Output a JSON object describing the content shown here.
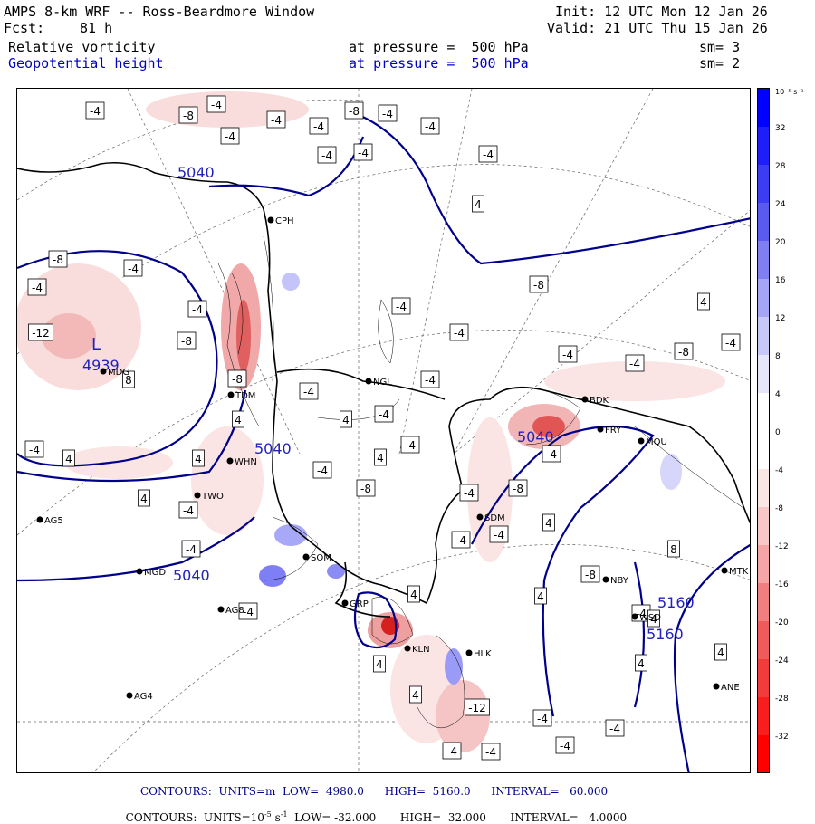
{
  "header": {
    "model": "AMPS 8-km WRF -- Ross-Beardmore Window",
    "fcst_label": "Fcst:",
    "fcst_value": "81 h",
    "init": "Init: 12 UTC Mon 12 Jan 26",
    "valid": "Valid: 21 UTC Thu 15 Jan 26"
  },
  "fields": [
    {
      "name": "Relative vorticity",
      "level": "at pressure =  500 hPa",
      "sm": "sm= 3"
    },
    {
      "name": "Geopotential height",
      "level": "at pressure =  500 hPa",
      "sm": "sm= 2"
    }
  ],
  "colorbar": {
    "units": "10⁻⁵ s⁻¹",
    "ticks": [
      "32",
      "28",
      "24",
      "20",
      "16",
      "12",
      "8",
      "4",
      "0",
      "-4",
      "-8",
      "-12",
      "-16",
      "-20",
      "-24",
      "-28",
      "-32"
    ]
  },
  "map": {
    "low_label": "L",
    "low_value": "4939",
    "height_labels": [
      "5040",
      "5040",
      "5040",
      "5040",
      "5160",
      "5160"
    ],
    "stations": [
      "CPH",
      "MDG",
      "TDM",
      "WHN",
      "TWO",
      "AG5",
      "MGD",
      "SDM",
      "GRP",
      "KLN",
      "HLK",
      "NGL",
      "BDK",
      "FRY",
      "MQU",
      "SOM",
      "NBY",
      "MTK",
      "WSD",
      "ANE",
      "AG4",
      "AG8"
    ],
    "vort_labels": [
      "-4",
      "-8",
      "-4",
      "-4",
      "-4",
      "-8",
      "-4",
      "-4",
      "-4",
      "-4",
      "-4",
      "-4",
      "4",
      "-8",
      "-4",
      "-4",
      "-4",
      "-8",
      "-4",
      "-12",
      "-8",
      "8",
      "-8",
      "4",
      "4",
      "-4",
      "-4",
      "4",
      "-8",
      "-4",
      "-4",
      "-4",
      "-4",
      "-4",
      "4",
      "4",
      "-4",
      "-4",
      "-4",
      "4",
      "4",
      "-4",
      "-8",
      "-8",
      "-4",
      "-4",
      "8",
      "4",
      "-4",
      "-4",
      "-4",
      "4",
      "-4",
      "4",
      "4",
      "-12",
      "-4",
      "-4",
      "-8",
      "-4",
      "4",
      "4",
      "4",
      "-4",
      "-4",
      "-4",
      "4"
    ]
  },
  "footer": {
    "line1": "CONTOURS:  UNITS=m  LOW=  4980.0      HIGH=  5160.0      INTERVAL=   60.000",
    "line2_a": "CONTOURS:  UNITS=10",
    "line2_b": "-5",
    "line2_c": " s",
    "line2_d": "-1",
    "line2_e": "  LOW= -32.000       HIGH=  32.000       INTERVAL=   4.0000"
  }
}
